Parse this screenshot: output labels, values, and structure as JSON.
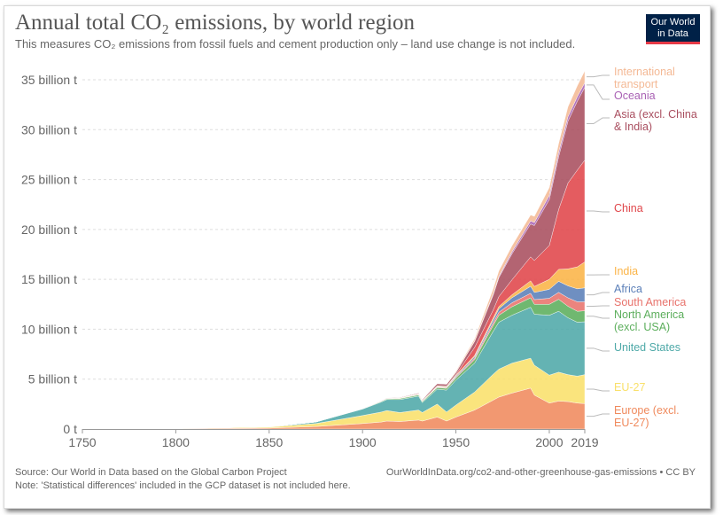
{
  "title": "Annual total CO₂ emissions, by world region",
  "subtitle": "This measures CO₂ emissions from fossil fuels and cement production only – land use change is not included.",
  "logo": {
    "line1": "Our World",
    "line2": "in Data"
  },
  "footer": {
    "source": "Source: Our World in Data based on the Global Carbon Project",
    "note": "Note: 'Statistical differences' included in the GCP dataset is not included here.",
    "url": "OurWorldInData.org/co2-and-other-greenhouse-gas-emissions • CC BY"
  },
  "chart_data": {
    "type": "area",
    "stacked": true,
    "grid": true,
    "xlim": [
      1750,
      2019
    ],
    "ylim": [
      0,
      35
    ],
    "x_ticks": [
      {
        "value": 1750,
        "label": "1750"
      },
      {
        "value": 1800,
        "label": "1800"
      },
      {
        "value": 1850,
        "label": "1850"
      },
      {
        "value": 1900,
        "label": "1900"
      },
      {
        "value": 1950,
        "label": "1950"
      },
      {
        "value": 2000,
        "label": "2000"
      },
      {
        "value": 2019,
        "label": "2019"
      }
    ],
    "y_ticks": [
      {
        "value": 0,
        "label": "0 t"
      },
      {
        "value": 5,
        "label": "5 billion t"
      },
      {
        "value": 10,
        "label": "10 billion t"
      },
      {
        "value": 15,
        "label": "15 billion t"
      },
      {
        "value": 20,
        "label": "20 billion t"
      },
      {
        "value": 25,
        "label": "25 billion t"
      },
      {
        "value": 30,
        "label": "30 billion t"
      },
      {
        "value": 35,
        "label": "35 billion t"
      }
    ],
    "x": [
      1750,
      1800,
      1850,
      1875,
      1900,
      1910,
      1913,
      1920,
      1930,
      1932,
      1940,
      1945,
      1950,
      1960,
      1970,
      1973,
      1980,
      1990,
      1992,
      2000,
      2005,
      2010,
      2015,
      2019
    ],
    "series": [
      {
        "name": "Europe (excl. EU-27)",
        "color": "#f08a5d",
        "values": [
          0.01,
          0.03,
          0.1,
          0.25,
          0.55,
          0.7,
          0.8,
          0.75,
          0.9,
          0.8,
          1.2,
          0.8,
          1.2,
          1.9,
          2.9,
          3.2,
          3.6,
          4.1,
          3.4,
          2.6,
          2.8,
          2.75,
          2.6,
          2.55
        ]
      },
      {
        "name": "EU-27",
        "color": "#f9e06b",
        "values": [
          0.0,
          0.02,
          0.1,
          0.3,
          0.8,
          1.0,
          1.05,
          0.9,
          1.0,
          0.85,
          1.3,
          0.9,
          1.2,
          1.8,
          2.6,
          2.8,
          3.0,
          3.0,
          3.0,
          2.8,
          2.9,
          2.7,
          2.7,
          2.9
        ]
      },
      {
        "name": "United States",
        "color": "#4ea9a8",
        "values": [
          0.0,
          0.0,
          0.02,
          0.15,
          0.65,
          1.0,
          1.1,
          1.3,
          1.4,
          1.0,
          1.5,
          2.2,
          2.5,
          2.9,
          4.3,
          4.7,
          4.8,
          5.1,
          5.1,
          6.0,
          6.1,
          5.7,
          5.4,
          5.3
        ]
      },
      {
        "name": "North America (excl. USA)",
        "color": "#5cae5c",
        "values": [
          0.0,
          0.0,
          0.0,
          0.01,
          0.03,
          0.07,
          0.08,
          0.1,
          0.12,
          0.1,
          0.15,
          0.18,
          0.22,
          0.35,
          0.6,
          0.7,
          0.85,
          0.95,
          1.0,
          1.1,
          1.2,
          1.15,
          1.1,
          1.1
        ]
      },
      {
        "name": "South America",
        "color": "#e8736c",
        "values": [
          0.0,
          0.0,
          0.0,
          0.0,
          0.0,
          0.01,
          0.01,
          0.02,
          0.03,
          0.03,
          0.05,
          0.06,
          0.08,
          0.15,
          0.25,
          0.3,
          0.4,
          0.45,
          0.47,
          0.6,
          0.7,
          0.85,
          0.95,
          0.9
        ]
      },
      {
        "name": "Africa",
        "color": "#5b7fb8",
        "values": [
          0.0,
          0.0,
          0.0,
          0.0,
          0.0,
          0.01,
          0.01,
          0.02,
          0.03,
          0.03,
          0.05,
          0.06,
          0.1,
          0.15,
          0.3,
          0.35,
          0.5,
          0.7,
          0.72,
          0.9,
          1.1,
          1.2,
          1.3,
          1.4
        ]
      },
      {
        "name": "India",
        "color": "#fbb447",
        "values": [
          0.0,
          0.0,
          0.0,
          0.0,
          0.02,
          0.03,
          0.04,
          0.05,
          0.05,
          0.05,
          0.07,
          0.07,
          0.08,
          0.12,
          0.2,
          0.22,
          0.3,
          0.55,
          0.6,
          1.0,
          1.2,
          1.7,
          2.2,
          2.6
        ]
      },
      {
        "name": "China",
        "color": "#e0464a",
        "values": [
          0.0,
          0.0,
          0.0,
          0.0,
          0.0,
          0.0,
          0.0,
          0.0,
          0.01,
          0.01,
          0.02,
          0.02,
          0.08,
          0.8,
          0.8,
          1.0,
          1.5,
          2.4,
          2.6,
          3.4,
          6.0,
          8.6,
          9.7,
          10.2
        ]
      },
      {
        "name": "Asia (excl. China & India)",
        "color": "#a94e5f",
        "values": [
          0.0,
          0.0,
          0.0,
          0.0,
          0.02,
          0.03,
          0.04,
          0.05,
          0.08,
          0.08,
          0.2,
          0.2,
          0.2,
          0.6,
          1.5,
          1.9,
          2.6,
          3.3,
          3.5,
          4.6,
          5.3,
          6.2,
          6.9,
          7.3
        ]
      },
      {
        "name": "Oceania",
        "color": "#a962b4",
        "values": [
          0.0,
          0.0,
          0.0,
          0.0,
          0.01,
          0.01,
          0.01,
          0.01,
          0.01,
          0.01,
          0.02,
          0.02,
          0.03,
          0.06,
          0.12,
          0.13,
          0.2,
          0.3,
          0.3,
          0.4,
          0.42,
          0.44,
          0.45,
          0.45
        ]
      },
      {
        "name": "International transport",
        "color": "#f4b995",
        "values": [
          0.0,
          0.0,
          0.0,
          0.0,
          0.0,
          0.0,
          0.0,
          0.0,
          0.0,
          0.0,
          0.0,
          0.0,
          0.1,
          0.2,
          0.5,
          0.55,
          0.6,
          0.6,
          0.62,
          0.8,
          0.9,
          1.0,
          1.1,
          1.2
        ]
      }
    ],
    "legend": {
      "placement": "right",
      "entries": [
        {
          "label": [
            "International",
            "transport"
          ],
          "color": "#f4b995"
        },
        {
          "label": [
            "Oceania"
          ],
          "color": "#a962b4"
        },
        {
          "label": [
            "Asia (excl. China",
            "& India)"
          ],
          "color": "#a94e5f"
        },
        {
          "label": [
            "China"
          ],
          "color": "#e0464a"
        },
        {
          "label": [
            "India"
          ],
          "color": "#fbb447"
        },
        {
          "label": [
            "Africa"
          ],
          "color": "#5b7fb8"
        },
        {
          "label": [
            "South America"
          ],
          "color": "#e8736c"
        },
        {
          "label": [
            "North America",
            "(excl. USA)"
          ],
          "color": "#5cae5c"
        },
        {
          "label": [
            "United States"
          ],
          "color": "#4ea9a8"
        },
        {
          "label": [
            "EU-27"
          ],
          "color": "#f9e06b"
        },
        {
          "label": [
            "Europe (excl.",
            "EU-27)"
          ],
          "color": "#f08a5d"
        }
      ]
    }
  }
}
